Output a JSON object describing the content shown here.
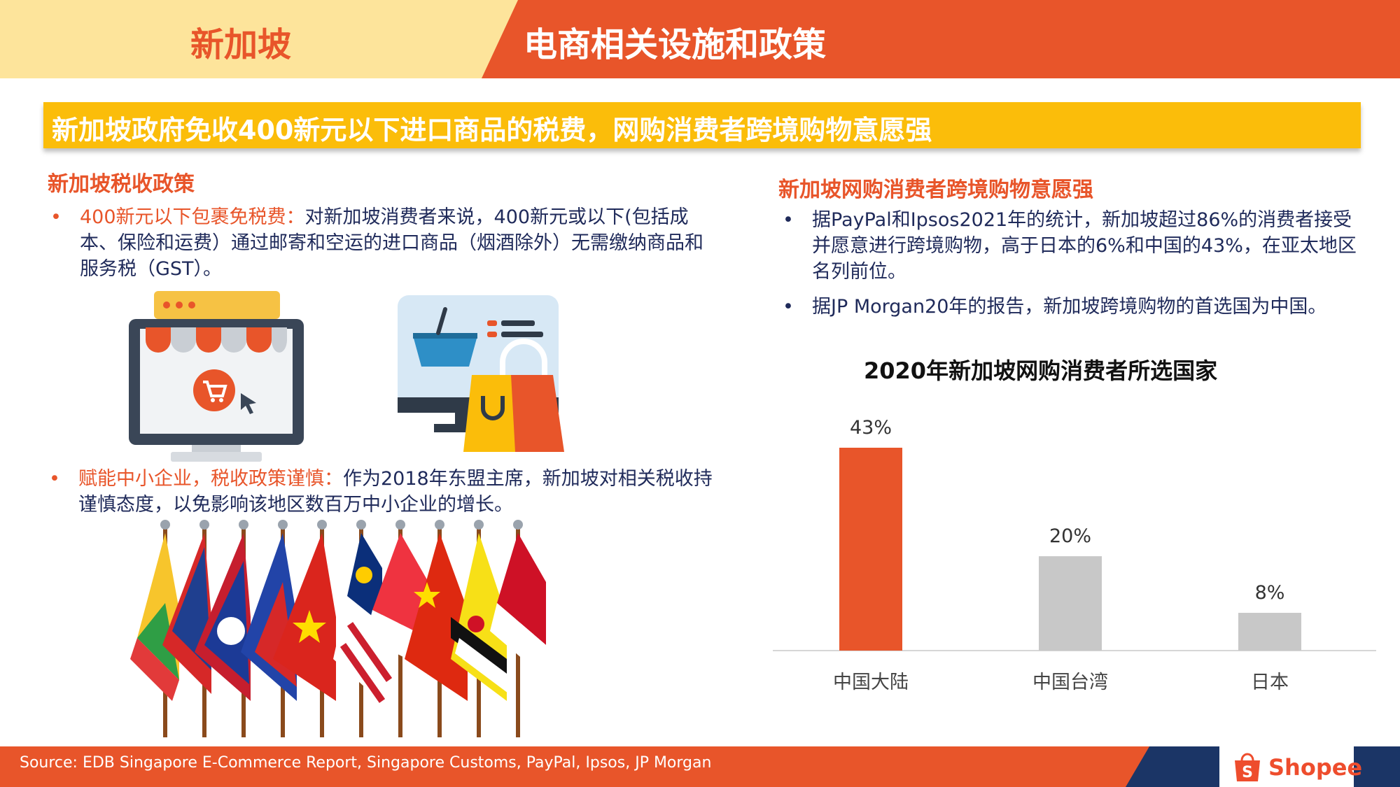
{
  "header": {
    "country": "新加坡",
    "title": "电商相关设施和政策"
  },
  "banner": {
    "text": "新加坡政府免收400新元以下进口商品的税费，网购消费者跨境购物意愿强"
  },
  "left": {
    "title": "新加坡税收政策",
    "bullets": [
      {
        "highlight": "400新元以下包裹免税费：",
        "text": "对新加坡消费者来说，400新元或以下(包括成本、保险和运费）通过邮寄和空运的进口商品（烟酒除外）无需缴纳商品和服务税（GST）。"
      },
      {
        "highlight": "赋能中小企业，税收政策谨慎：",
        "text": "作为2018年东盟主席，新加坡对相关税收持谨慎态度，以免影响该地区数百万中小企业的增长。"
      }
    ]
  },
  "right": {
    "title": "新加坡网购消费者跨境购物意愿强",
    "bullets": [
      "据PayPal和Ipsos2021年的统计，新加坡超过86%的消费者接受并愿意进行跨境购物，高于日本的6%和中国的43%，在亚太地区名列前位。",
      "据JP Morgan20年的报告，新加坡跨境购物的首选国为中国。"
    ]
  },
  "chart_data": {
    "type": "bar",
    "title": "2020年新加坡网购消费者所选国家",
    "categories": [
      "中国大陆",
      "中国台湾",
      "日本"
    ],
    "values": [
      43,
      20,
      8
    ],
    "value_labels": [
      "43%",
      "20%",
      "8%"
    ],
    "colors": [
      "#e8552a",
      "#c8c8c8",
      "#c8c8c8"
    ],
    "ylim": [
      0,
      43
    ],
    "grid": false,
    "xlabel": "",
    "ylabel": ""
  },
  "footer": {
    "source": "Source: EDB Singapore E-Commerce Report, Singapore Customs, PayPal, Ipsos, JP Morgan",
    "logo_text": "Shopee",
    "logo_icon": "shopping-bag-icon"
  },
  "colors": {
    "accent": "#e8552a",
    "header_light": "#fde49b",
    "banner": "#fbbd0a",
    "text": "#1f2a5a",
    "footer_dark": "#1b3566"
  }
}
